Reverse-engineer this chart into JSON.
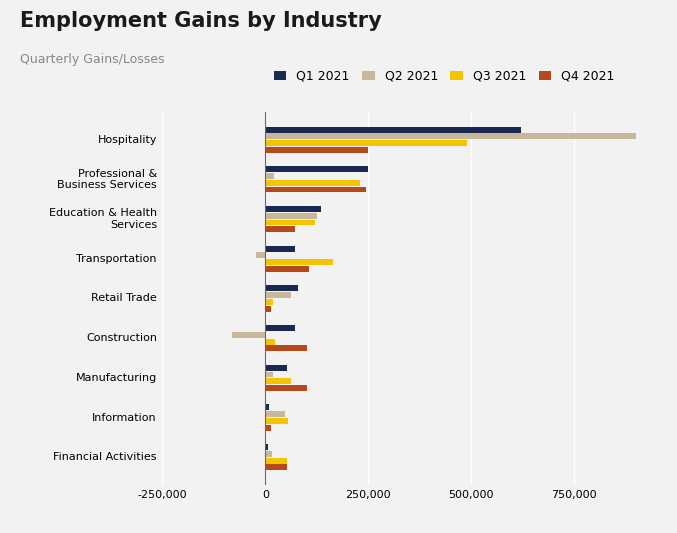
{
  "title": "Employment Gains by Industry",
  "subtitle": "Quarterly Gains/Losses",
  "categories": [
    "Hospitality",
    "Professional &\nBusiness Services",
    "Education & Health\nServices",
    "Transportation",
    "Retail Trade",
    "Construction",
    "Manufacturing",
    "Information",
    "Financial Activities"
  ],
  "quarters": [
    "Q1 2021",
    "Q2 2021",
    "Q3 2021",
    "Q4 2021"
  ],
  "colors": [
    "#1a2952",
    "#c8b89a",
    "#f5c400",
    "#b5491c"
  ],
  "data": {
    "Hospitality": [
      620000,
      900000,
      490000,
      250000
    ],
    "Professional &\nBusiness Services": [
      250000,
      20000,
      230000,
      245000
    ],
    "Education & Health\nServices": [
      135000,
      125000,
      120000,
      72000
    ],
    "Transportation": [
      72000,
      -22000,
      165000,
      105000
    ],
    "Retail Trade": [
      78000,
      62000,
      18000,
      14000
    ],
    "Construction": [
      72000,
      -80000,
      22000,
      100000
    ],
    "Manufacturing": [
      52000,
      18000,
      62000,
      100000
    ],
    "Information": [
      8000,
      48000,
      55000,
      13000
    ],
    "Financial Activities": [
      7000,
      16000,
      52000,
      52000
    ]
  },
  "xlim": [
    -250000,
    950000
  ],
  "xticks": [
    -250000,
    0,
    250000,
    500000,
    750000
  ],
  "background_color": "#f2f2f2",
  "bar_height": 0.17,
  "title_fontsize": 15,
  "subtitle_fontsize": 9,
  "legend_fontsize": 9,
  "tick_fontsize": 8
}
